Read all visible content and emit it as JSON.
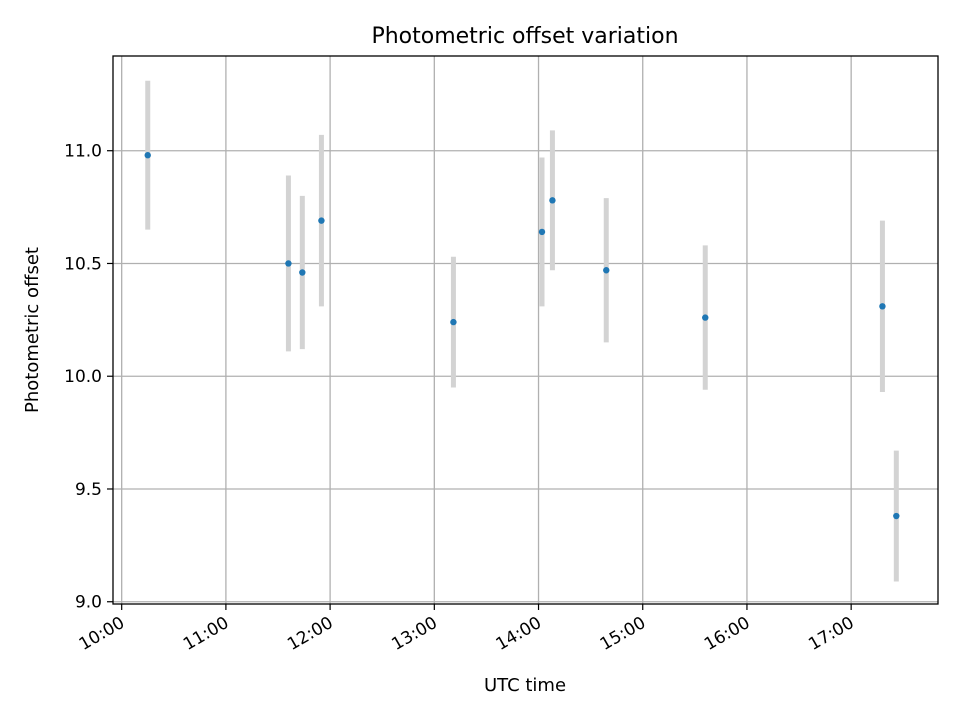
{
  "chart_data": {
    "type": "scatter",
    "title": "Photometric offset variation",
    "xlabel": "UTC time",
    "ylabel": "Photometric offset",
    "x_ticks": [
      "10:00",
      "11:00",
      "12:00",
      "13:00",
      "14:00",
      "15:00",
      "16:00",
      "17:00"
    ],
    "y_ticks": [
      "9.0",
      "9.5",
      "10.0",
      "10.5",
      "11.0"
    ],
    "xlim": [
      "09:55",
      "17:50"
    ],
    "ylim": [
      8.99,
      11.42
    ],
    "grid": true,
    "legend": "none",
    "colors": {
      "point": "#1f77b4",
      "errorbar": "#d3d3d3",
      "grid": "#b0b0b0",
      "axes": "#000000"
    },
    "series": [
      {
        "points": [
          {
            "t": "10:15",
            "y": 10.98,
            "err": 0.33
          },
          {
            "t": "11:36",
            "y": 10.5,
            "err": 0.39
          },
          {
            "t": "11:44",
            "y": 10.46,
            "err": 0.34
          },
          {
            "t": "11:55",
            "y": 10.69,
            "err": 0.38
          },
          {
            "t": "13:11",
            "y": 10.24,
            "err": 0.29
          },
          {
            "t": "14:02",
            "y": 10.64,
            "err": 0.33
          },
          {
            "t": "14:08",
            "y": 10.78,
            "err": 0.31
          },
          {
            "t": "14:39",
            "y": 10.47,
            "err": 0.32
          },
          {
            "t": "15:36",
            "y": 10.26,
            "err": 0.32
          },
          {
            "t": "17:18",
            "y": 10.31,
            "err": 0.38
          },
          {
            "t": "17:26",
            "y": 9.38,
            "err": 0.29
          }
        ]
      }
    ]
  }
}
